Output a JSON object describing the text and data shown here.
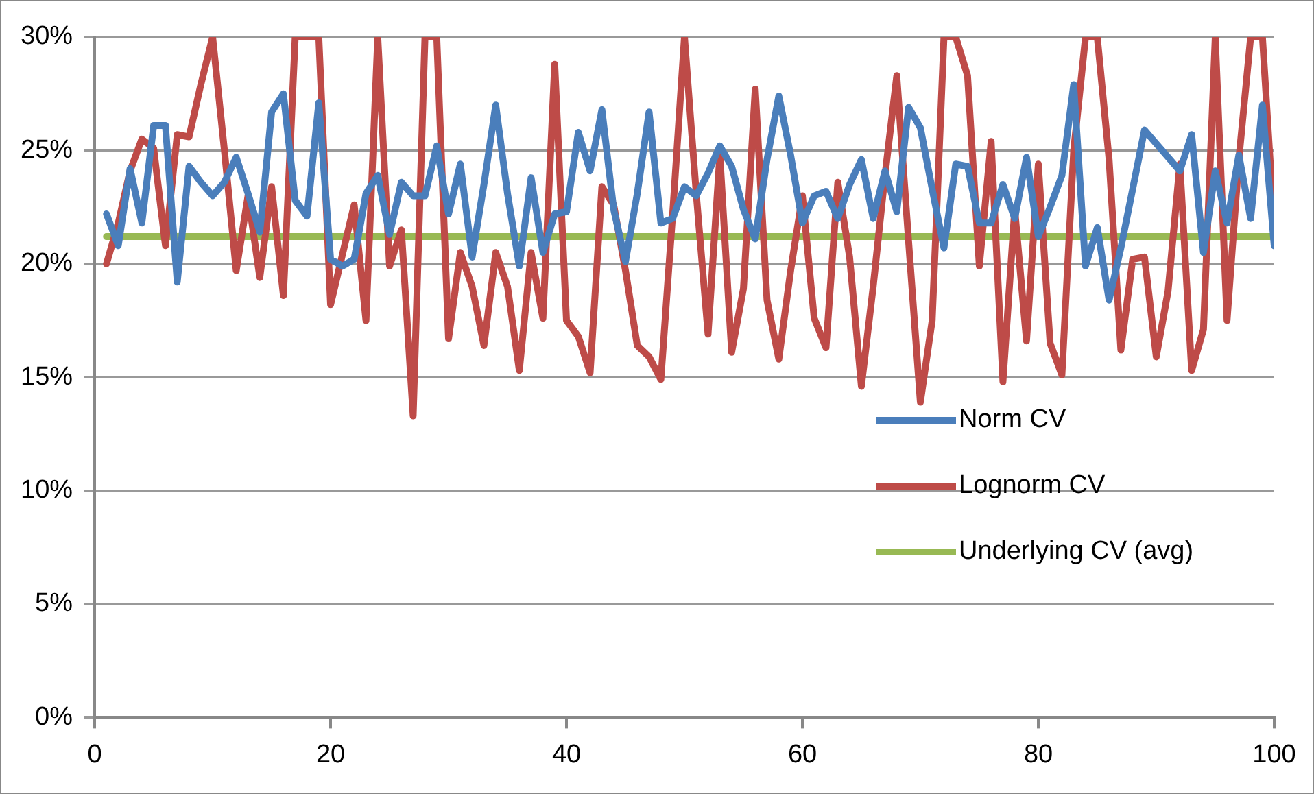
{
  "chart_data": {
    "type": "line",
    "x": [
      1,
      2,
      3,
      4,
      5,
      6,
      7,
      8,
      9,
      10,
      11,
      12,
      13,
      14,
      15,
      16,
      17,
      18,
      19,
      20,
      21,
      22,
      23,
      24,
      25,
      26,
      27,
      28,
      29,
      30,
      31,
      32,
      33,
      34,
      35,
      36,
      37,
      38,
      39,
      40,
      41,
      42,
      43,
      44,
      45,
      46,
      47,
      48,
      49,
      50,
      51,
      52,
      53,
      54,
      55,
      56,
      57,
      58,
      59,
      60,
      61,
      62,
      63,
      64,
      65,
      66,
      67,
      68,
      69,
      70,
      71,
      72,
      73,
      74,
      75,
      76,
      77,
      78,
      79,
      80,
      81,
      82,
      83,
      84,
      85,
      86,
      87,
      88,
      89,
      90,
      91,
      92,
      93,
      94,
      95,
      96,
      97,
      98,
      99,
      100
    ],
    "series": [
      {
        "name": "Norm CV",
        "color": "#4a7ebb",
        "values": [
          22.2,
          20.8,
          24.2,
          21.8,
          26.1,
          26.1,
          19.2,
          24.3,
          23.6,
          23.0,
          23.6,
          24.7,
          23.1,
          21.4,
          26.7,
          27.5,
          22.8,
          22.1,
          27.1,
          20.2,
          19.9,
          20.2,
          23.1,
          23.9,
          21.3,
          23.6,
          23.0,
          23.0,
          25.2,
          22.2,
          24.4,
          20.3,
          23.5,
          27.0,
          23.1,
          19.9,
          23.8,
          20.5,
          22.2,
          22.3,
          25.8,
          24.1,
          26.8,
          22.4,
          20.1,
          23.1,
          26.7,
          21.8,
          22.0,
          23.4,
          23.0,
          24.0,
          25.2,
          24.3,
          22.4,
          21.1,
          24.6,
          27.4,
          24.8,
          21.8,
          23.0,
          23.2,
          22.0,
          23.5,
          24.6,
          22.0,
          24.1,
          22.3,
          26.9,
          26.0,
          23.3,
          20.7,
          24.4,
          24.3,
          21.8,
          21.8,
          23.5,
          22.0,
          24.7,
          21.2,
          22.5,
          23.9,
          27.9,
          19.9,
          21.6,
          18.4,
          20.7,
          23.3,
          25.9,
          25.3,
          24.7,
          24.1,
          25.7,
          20.5,
          24.1,
          21.8,
          24.8,
          22.0,
          27.0,
          20.8
        ]
      },
      {
        "name": "Lognorm CV",
        "color": "#be4b48",
        "values": [
          20.0,
          21.8,
          24.1,
          25.5,
          25.1,
          20.8,
          25.7,
          25.6,
          27.9,
          30,
          25,
          19.7,
          23.0,
          19.4,
          23.4,
          18.6,
          30,
          30,
          30,
          18.2,
          20.4,
          22.6,
          17.5,
          30,
          19.9,
          21.5,
          13.3,
          30,
          30,
          16.7,
          20.5,
          19.0,
          16.4,
          20.5,
          19.0,
          15.3,
          20.5,
          17.6,
          28.8,
          17.5,
          16.8,
          15.2,
          23.4,
          22.6,
          19.7,
          16.4,
          15.9,
          14.9,
          22.2,
          30,
          23.1,
          16.9,
          24.8,
          16.1,
          18.9,
          27.7,
          18.4,
          15.8,
          19.7,
          23.0,
          17.6,
          16.3,
          23.6,
          20.3,
          14.6,
          19.0,
          23.9,
          28.3,
          21.0,
          13.9,
          17.5,
          30,
          30,
          28.3,
          19.9,
          25.4,
          14.8,
          22.4,
          16.6,
          24.4,
          16.5,
          15.1,
          25,
          30,
          30,
          24.6,
          16.2,
          20.2,
          20.3,
          15.9,
          18.8,
          24.4,
          15.3,
          17.1,
          30,
          17.5,
          24.6,
          30,
          30,
          21.6
        ]
      },
      {
        "name": "Underlying CV (avg)",
        "color": "#98b954",
        "values": [
          21.2,
          21.2,
          21.2,
          21.2,
          21.2,
          21.2,
          21.2,
          21.2,
          21.2,
          21.2,
          21.2,
          21.2,
          21.2,
          21.2,
          21.2,
          21.2,
          21.2,
          21.2,
          21.2,
          21.2,
          21.2,
          21.2,
          21.2,
          21.2,
          21.2,
          21.2,
          21.2,
          21.2,
          21.2,
          21.2,
          21.2,
          21.2,
          21.2,
          21.2,
          21.2,
          21.2,
          21.2,
          21.2,
          21.2,
          21.2,
          21.2,
          21.2,
          21.2,
          21.2,
          21.2,
          21.2,
          21.2,
          21.2,
          21.2,
          21.2,
          21.2,
          21.2,
          21.2,
          21.2,
          21.2,
          21.2,
          21.2,
          21.2,
          21.2,
          21.2,
          21.2,
          21.2,
          21.2,
          21.2,
          21.2,
          21.2,
          21.2,
          21.2,
          21.2,
          21.2,
          21.2,
          21.2,
          21.2,
          21.2,
          21.2,
          21.2,
          21.2,
          21.2,
          21.2,
          21.2,
          21.2,
          21.2,
          21.2,
          21.2,
          21.2,
          21.2,
          21.2,
          21.2,
          21.2,
          21.2,
          21.2,
          21.2,
          21.2,
          21.2,
          21.2,
          21.2,
          21.2,
          21.2,
          21.2,
          21.2
        ]
      }
    ],
    "xlim": [
      0,
      100
    ],
    "xticks": [
      0,
      20,
      40,
      60,
      80,
      100
    ],
    "ylim": [
      0,
      30
    ],
    "yticks": [
      {
        "value": 0,
        "label": "0%"
      },
      {
        "value": 5,
        "label": "5%"
      },
      {
        "value": 10,
        "label": "10%"
      },
      {
        "value": 15,
        "label": "15%"
      },
      {
        "value": 20,
        "label": "20%"
      },
      {
        "value": 25,
        "label": "25%"
      },
      {
        "value": 30,
        "label": "30%"
      }
    ],
    "grid": "y",
    "legend": "right",
    "marker": "none",
    "line_style": "solid"
  }
}
